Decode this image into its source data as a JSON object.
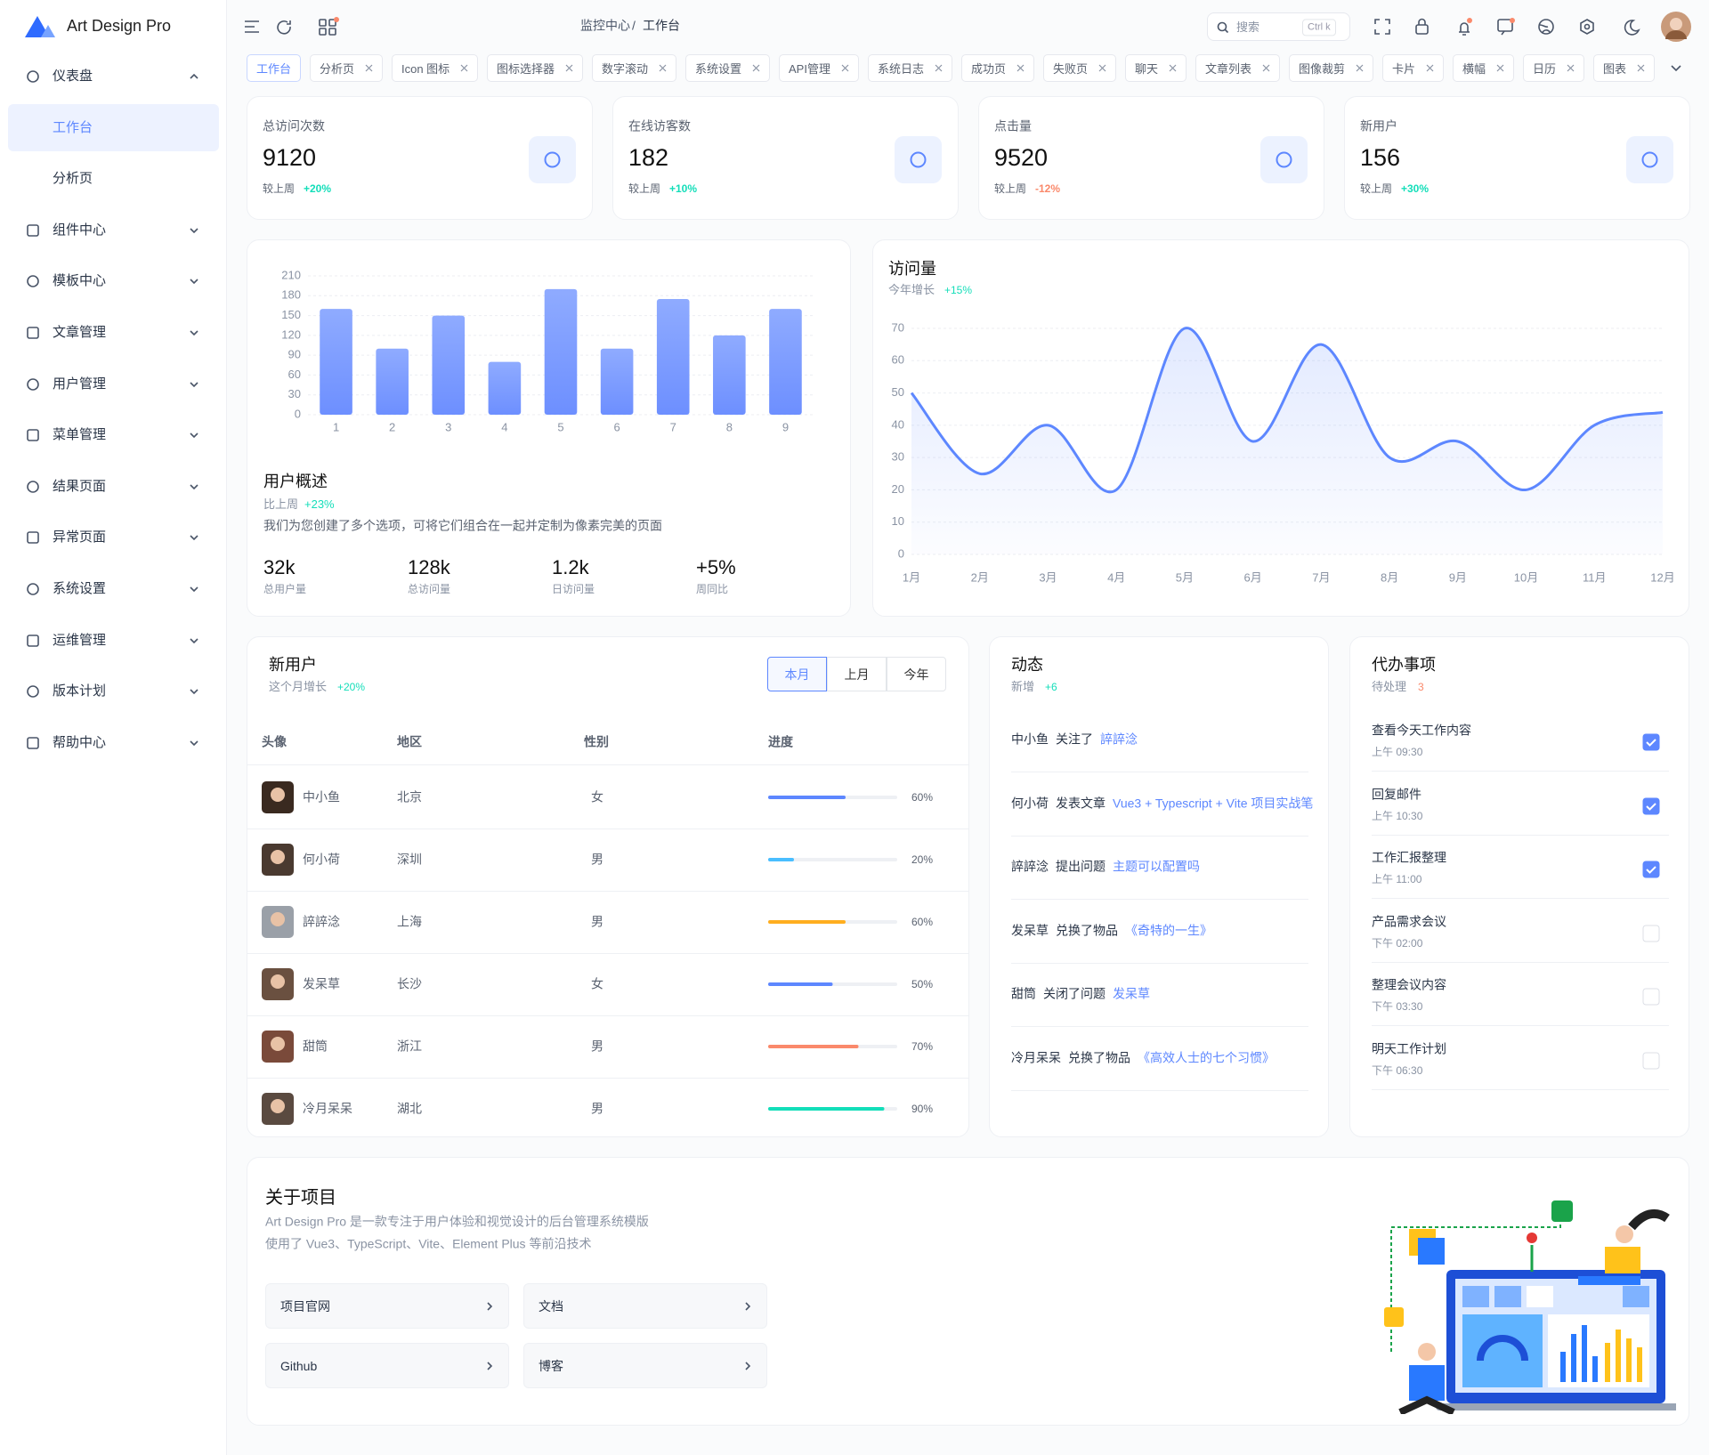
{
  "sidebar": {
    "brand": "Art Design Pro",
    "menu": [
      {
        "label": "仪表盘",
        "children": [
          "工作台",
          "分析页"
        ]
      },
      {
        "label": "组件中心"
      },
      {
        "label": "模板中心"
      },
      {
        "label": "文章管理"
      },
      {
        "label": "用户管理"
      },
      {
        "label": "菜单管理"
      },
      {
        "label": "结果页面"
      },
      {
        "label": "异常页面"
      },
      {
        "label": "系统设置"
      },
      {
        "label": "运维管理"
      },
      {
        "label": "版本计划"
      },
      {
        "label": "帮助中心"
      }
    ]
  },
  "header": {
    "breadcrumb": [
      "监控中心",
      "工作台"
    ],
    "separator": "/",
    "search": {
      "placeholder": "搜索",
      "shortcut": "Ctrl k"
    }
  },
  "tabs": [
    "工作台",
    "分析页",
    "Icon 图标",
    "图标选择器",
    "数字滚动",
    "系统设置",
    "API管理",
    "系统日志",
    "成功页",
    "失败页",
    "聊天",
    "文章列表",
    "图像裁剪",
    "卡片",
    "横幅",
    "日历",
    "图表"
  ],
  "stats": [
    {
      "label": "总访问次数",
      "value": "9120",
      "compare": "较上周",
      "change": "+20%",
      "color": "#13deb9"
    },
    {
      "label": "在线访客数",
      "value": "182",
      "compare": "较上周",
      "change": "+10%",
      "color": "#13deb9"
    },
    {
      "label": "点击量",
      "value": "9520",
      "compare": "较上周",
      "change": "-12%",
      "color": "#fa896b"
    },
    {
      "label": "新用户",
      "value": "156",
      "compare": "较上周",
      "change": "+30%",
      "color": "#13deb9"
    }
  ],
  "user_overview": {
    "chart": {
      "type": "bar",
      "categories": [
        "1",
        "2",
        "3",
        "4",
        "5",
        "6",
        "7",
        "8",
        "9"
      ],
      "values": [
        160,
        100,
        150,
        80,
        190,
        100,
        175,
        120,
        160
      ],
      "color": "#6d8fff",
      "ylim": [
        0,
        210
      ],
      "yticks": [
        0,
        30,
        60,
        90,
        120,
        150,
        180,
        210
      ],
      "grid": true
    },
    "title": "用户概述",
    "subtitle": "比上周",
    "change": "+23%",
    "description": "我们为您创建了多个选项，可将它们组合在一起并定制为像素完美的页面",
    "metrics": [
      {
        "value": "32k",
        "label": "总用户量"
      },
      {
        "value": "128k",
        "label": "总访问量"
      },
      {
        "value": "1.2k",
        "label": "日访问量"
      },
      {
        "value": "+5%",
        "label": "周同比"
      }
    ]
  },
  "visits": {
    "title": "访问量",
    "subtitle": "今年增长",
    "change": "+15%",
    "chart": {
      "type": "line",
      "categories": [
        "1月",
        "2月",
        "3月",
        "4月",
        "5月",
        "6月",
        "7月",
        "8月",
        "9月",
        "10月",
        "11月",
        "12月"
      ],
      "values": [
        50,
        25,
        40,
        20,
        70,
        35,
        65,
        30,
        35,
        20,
        40,
        44
      ],
      "color": "#5d87ff",
      "ylim": [
        0,
        70
      ],
      "yticks": [
        0,
        10,
        20,
        30,
        40,
        50,
        60,
        70
      ],
      "grid": true
    }
  },
  "new_users": {
    "title": "新用户",
    "subtitle": "这个月增长",
    "change": "+20%",
    "periods": [
      "本月",
      "上月",
      "今年"
    ],
    "columns": [
      "头像",
      "地区",
      "性别",
      "进度"
    ],
    "rows": [
      {
        "name": "中小鱼",
        "region": "北京",
        "gender": "女",
        "progress": 60,
        "progress_label": "60%",
        "color": "#5d87ff"
      },
      {
        "name": "何小荷",
        "region": "深圳",
        "gender": "男",
        "progress": 20,
        "progress_label": "20%",
        "color": "#49beff"
      },
      {
        "name": "誶誶淰",
        "region": "上海",
        "gender": "男",
        "progress": 60,
        "progress_label": "60%",
        "color": "#ffae1f"
      },
      {
        "name": "发呆草",
        "region": "长沙",
        "gender": "女",
        "progress": 50,
        "progress_label": "50%",
        "color": "#5d87ff"
      },
      {
        "name": "甜筒",
        "region": "浙江",
        "gender": "男",
        "progress": 70,
        "progress_label": "70%",
        "color": "#fa896b"
      },
      {
        "name": "冷月呆呆",
        "region": "湖北",
        "gender": "男",
        "progress": 90,
        "progress_label": "90%",
        "color": "#13deb9"
      }
    ]
  },
  "activity": {
    "title": "动态",
    "subtitle": "新增",
    "count": "+6",
    "items": [
      {
        "user": "中小鱼",
        "action": "关注了",
        "target": "誶誶淰"
      },
      {
        "user": "何小荷",
        "action": "发表文章",
        "target": "Vue3 + Typescript + Vite 项目实战笔"
      },
      {
        "user": "誶誶淰",
        "action": "提出问题",
        "target": "主题可以配置吗"
      },
      {
        "user": "发呆草",
        "action": "兑换了物品",
        "target": "《奇特的一生》"
      },
      {
        "user": "甜筒",
        "action": "关闭了问题",
        "target": "发呆草"
      },
      {
        "user": "冷月呆呆",
        "action": "兑换了物品",
        "target": "《高效人士的七个习惯》"
      }
    ]
  },
  "todo": {
    "title": "代办事项",
    "subtitle": "待处理",
    "count": "3",
    "items": [
      {
        "title": "查看今天工作内容",
        "time": "上午 09:30",
        "done": true
      },
      {
        "title": "回复邮件",
        "time": "上午 10:30",
        "done": true
      },
      {
        "title": "工作汇报整理",
        "time": "上午 11:00",
        "done": true
      },
      {
        "title": "产品需求会议",
        "time": "下午 02:00",
        "done": false
      },
      {
        "title": "整理会议内容",
        "time": "下午 03:30",
        "done": false
      },
      {
        "title": "明天工作计划",
        "time": "下午 06:30",
        "done": false
      }
    ]
  },
  "about": {
    "title": "关于项目",
    "lines": [
      "Art Design Pro 是一款专注于用户体验和视觉设计的后台管理系统模版",
      "使用了 Vue3、TypeScript、Vite、Element Plus 等前沿技术"
    ],
    "links": [
      "项目官网",
      "文档",
      "Github",
      "博客"
    ]
  }
}
